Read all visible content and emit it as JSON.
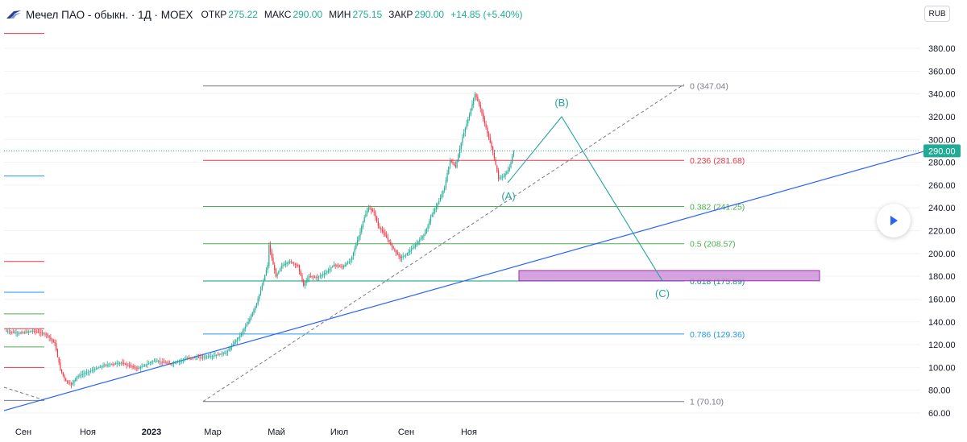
{
  "header": {
    "symbol_title": "Мечел ПАО - обыкн. · 1Д · MOEX",
    "ohlc": [
      {
        "key": "ОТКР",
        "value": "275.22"
      },
      {
        "key": "МАКС",
        "value": "290.00"
      },
      {
        "key": "МИН",
        "value": "275.15"
      },
      {
        "key": "ЗАКР",
        "value": "290.00"
      }
    ],
    "change": "+14.85 (+5.40%)",
    "currency": "RUB"
  },
  "colors": {
    "up": "#22ab94",
    "down": "#f23645",
    "trendline": "#2962ff",
    "wave": "#26a69a",
    "zone": "#ce93d8"
  },
  "icons": {
    "logo": "mechel-logo-icon",
    "play": "play-icon"
  },
  "chart_data": {
    "type": "candlestick",
    "y_axis": {
      "ticks": [
        60,
        80,
        100,
        120,
        140,
        160,
        180,
        200,
        220,
        240,
        260,
        280,
        300,
        320,
        340,
        360,
        380
      ],
      "tick_labels": [
        "60.00",
        "80.00",
        "100.00",
        "120.00",
        "140.00",
        "160.00",
        "180.00",
        "200.00",
        "220.00",
        "240.00",
        "260.00",
        "280.00",
        "300.00",
        "320.00",
        "340.00",
        "360.00",
        "380.00"
      ],
      "range": [
        55,
        404
      ]
    },
    "x_axis": {
      "labels": [
        "Сен",
        "Ноя",
        "2023",
        "Мар",
        "Май",
        "Июл",
        "Сен",
        "Ноя"
      ]
    },
    "last_price": {
      "value": 290,
      "label": "290.00"
    },
    "price_path": [
      [
        0,
        132
      ],
      [
        10,
        130
      ],
      [
        20,
        132
      ],
      [
        30,
        129
      ],
      [
        36,
        121
      ],
      [
        40,
        98
      ],
      [
        44,
        88
      ],
      [
        48,
        85
      ],
      [
        52,
        92
      ],
      [
        60,
        96
      ],
      [
        72,
        102
      ],
      [
        84,
        104
      ],
      [
        96,
        99
      ],
      [
        108,
        106
      ],
      [
        120,
        103
      ],
      [
        132,
        108
      ],
      [
        150,
        110
      ],
      [
        160,
        113
      ],
      [
        170,
        128
      ],
      [
        176,
        140
      ],
      [
        182,
        156
      ],
      [
        186,
        172
      ],
      [
        190,
        190
      ],
      [
        191,
        207
      ],
      [
        193,
        196
      ],
      [
        196,
        180
      ],
      [
        200,
        189
      ],
      [
        206,
        193
      ],
      [
        212,
        189
      ],
      [
        216,
        172
      ],
      [
        220,
        180
      ],
      [
        226,
        179
      ],
      [
        232,
        183
      ],
      [
        238,
        190
      ],
      [
        244,
        188
      ],
      [
        250,
        194
      ],
      [
        256,
        215
      ],
      [
        260,
        232
      ],
      [
        263,
        240
      ],
      [
        267,
        236
      ],
      [
        270,
        224
      ],
      [
        274,
        218
      ],
      [
        280,
        206
      ],
      [
        286,
        196
      ],
      [
        290,
        199
      ],
      [
        296,
        206
      ],
      [
        304,
        218
      ],
      [
        308,
        232
      ],
      [
        314,
        246
      ],
      [
        318,
        258
      ],
      [
        322,
        282
      ],
      [
        326,
        276
      ],
      [
        331,
        302
      ],
      [
        336,
        322
      ],
      [
        340,
        340
      ],
      [
        343,
        331
      ],
      [
        348,
        310
      ],
      [
        353,
        289
      ],
      [
        357,
        266
      ],
      [
        361,
        268
      ],
      [
        365,
        275
      ],
      [
        368,
        290
      ]
    ],
    "fibonacci": [
      {
        "level": "0",
        "price": 347.04,
        "label": "0 (347.04)",
        "color": "#787b86"
      },
      {
        "level": "0.236",
        "price": 281.68,
        "label": "0.236 (281.68)",
        "color": "#f23645"
      },
      {
        "level": "0.382",
        "price": 241.25,
        "label": "0.382 (241.25)",
        "color": "#4caf50"
      },
      {
        "level": "0.5",
        "price": 208.57,
        "label": "0.5 (208.57)",
        "color": "#4caf50"
      },
      {
        "level": "0.618",
        "price": 175.89,
        "label": "0.618 (175.89)",
        "color": "#089981"
      },
      {
        "level": "0.786",
        "price": 129.36,
        "label": "0.786 (129.36)",
        "color": "#2196f3"
      },
      {
        "level": "1",
        "price": 70.1,
        "label": "1 (70.10)",
        "color": "#787b86"
      }
    ],
    "wave_labels": [
      "(A)",
      "(B)",
      "(C)"
    ],
    "target_zone": {
      "from": 176,
      "to": 185
    },
    "left_price_marks": [
      {
        "price": 393,
        "color": "#f23645"
      },
      {
        "price": 268,
        "color": "#2196f3"
      },
      {
        "price": 193,
        "color": "#f23645"
      },
      {
        "price": 166,
        "color": "#2196f3"
      },
      {
        "price": 147,
        "color": "#4caf50"
      },
      {
        "price": 134,
        "color": "#f23645"
      },
      {
        "price": 118,
        "color": "#4caf50"
      },
      {
        "price": 100,
        "color": "#f23645"
      },
      {
        "price": 71,
        "color": "#787b86"
      }
    ]
  }
}
